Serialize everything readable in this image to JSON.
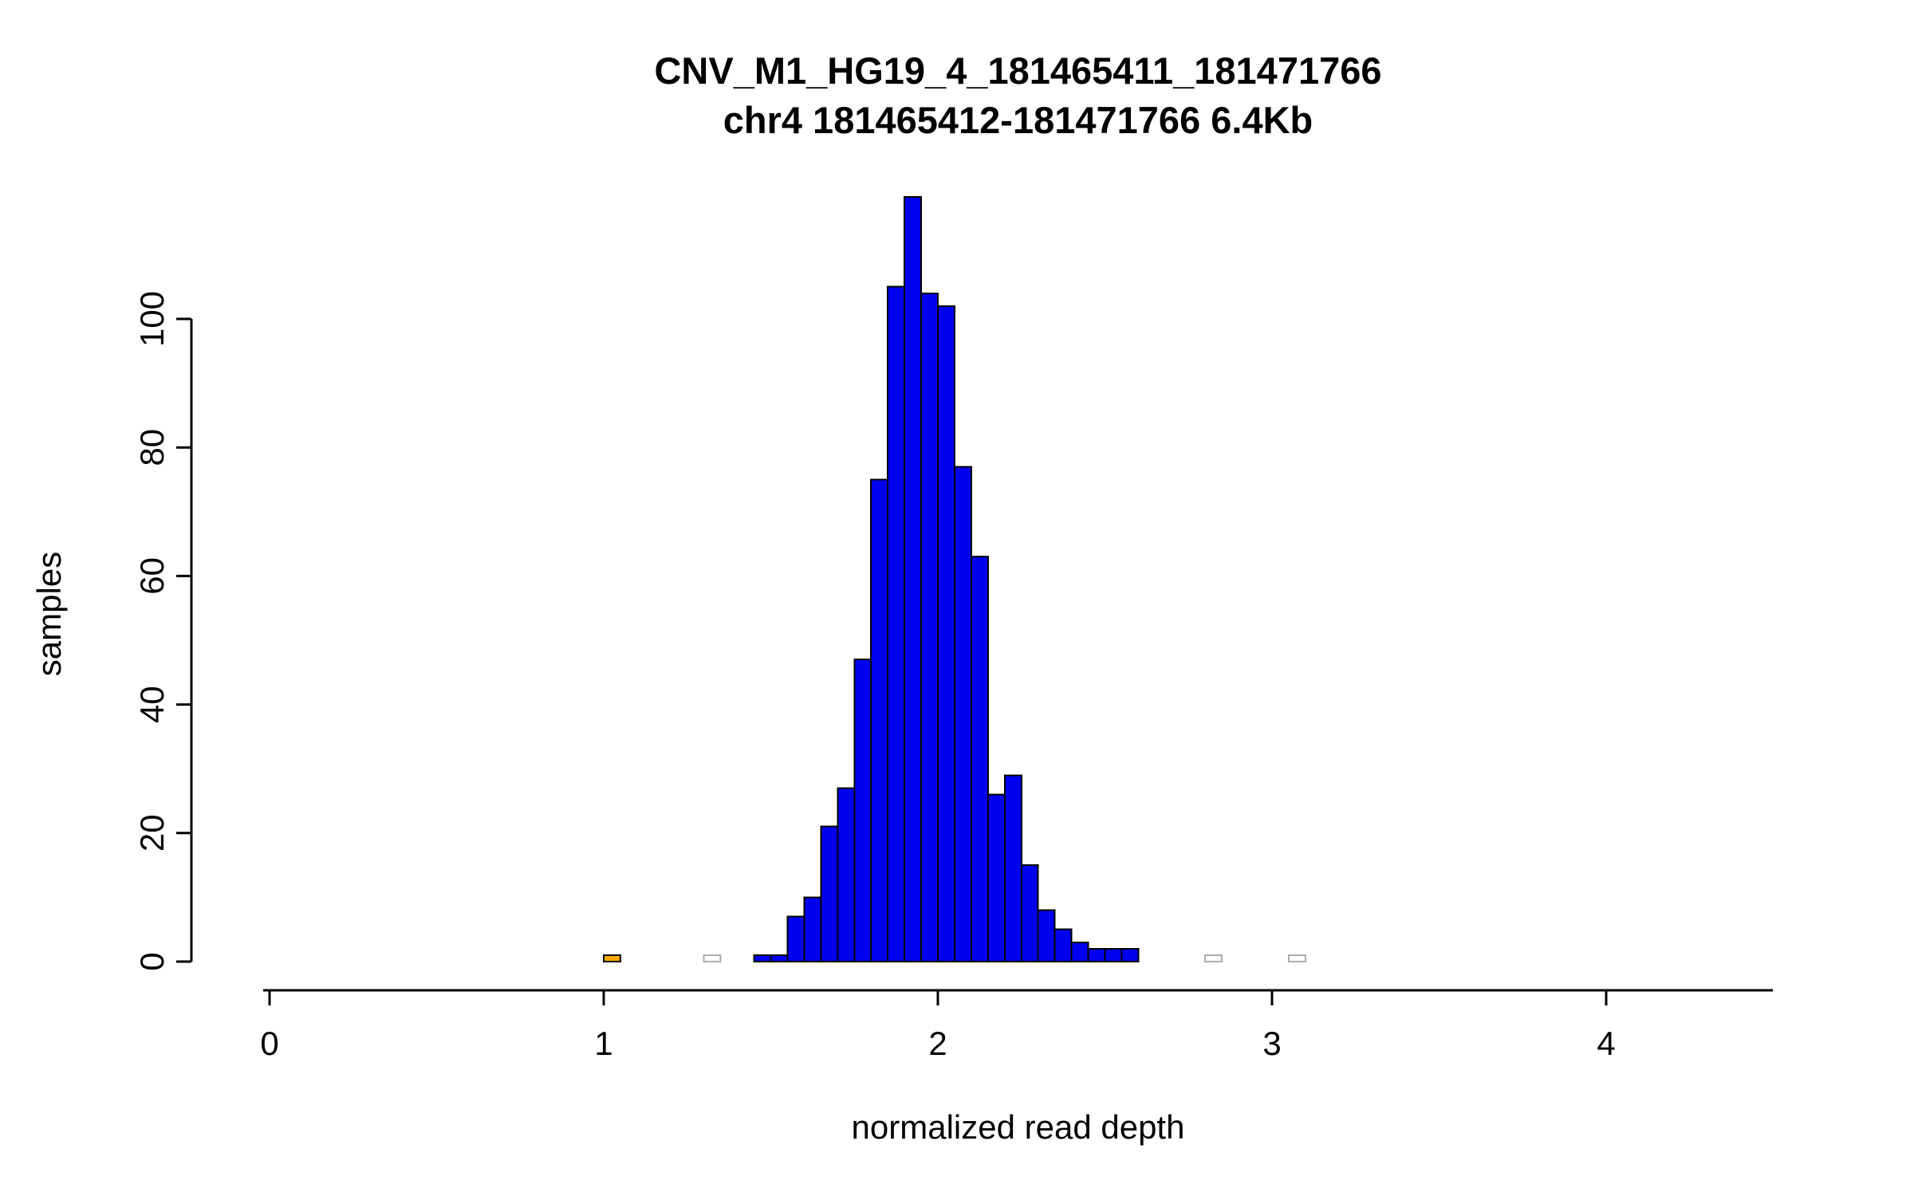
{
  "page": {
    "background": "#FFFFFF"
  },
  "chart_data": {
    "type": "bar",
    "chart_kind": "histogram",
    "title": "CNV_M1_HG19_4_181465411_181471766",
    "subtitle": "chr4 181465412-181471766 6.4Kb",
    "xlabel": "normalized read depth",
    "ylabel": "samples",
    "x_ticks": [
      0,
      1,
      2,
      3,
      4
    ],
    "y_ticks": [
      0,
      20,
      40,
      60,
      80,
      100
    ],
    "xlim": [
      0,
      4.5
    ],
    "ylim": [
      0,
      119
    ],
    "bin_width": 0.05,
    "grid": false,
    "legend": "none",
    "axis_color": "#000000",
    "default_bar_color": "#0000EE",
    "default_bar_border": "#000000",
    "bars": [
      {
        "x": 1.0,
        "count": 1,
        "color": "#FFA500"
      },
      {
        "x": 1.3,
        "count": 1,
        "color": "#FFFFFF",
        "border": "#ADADAD"
      },
      {
        "x": 1.45,
        "count": 1
      },
      {
        "x": 1.5,
        "count": 1
      },
      {
        "x": 1.55,
        "count": 7
      },
      {
        "x": 1.6,
        "count": 10
      },
      {
        "x": 1.65,
        "count": 21
      },
      {
        "x": 1.7,
        "count": 27
      },
      {
        "x": 1.75,
        "count": 47
      },
      {
        "x": 1.8,
        "count": 75
      },
      {
        "x": 1.85,
        "count": 105
      },
      {
        "x": 1.9,
        "count": 119
      },
      {
        "x": 1.95,
        "count": 104
      },
      {
        "x": 2.0,
        "count": 102
      },
      {
        "x": 2.05,
        "count": 77
      },
      {
        "x": 2.1,
        "count": 63
      },
      {
        "x": 2.15,
        "count": 26
      },
      {
        "x": 2.2,
        "count": 29
      },
      {
        "x": 2.25,
        "count": 15
      },
      {
        "x": 2.3,
        "count": 8
      },
      {
        "x": 2.35,
        "count": 5
      },
      {
        "x": 2.4,
        "count": 3
      },
      {
        "x": 2.45,
        "count": 2
      },
      {
        "x": 2.5,
        "count": 2
      },
      {
        "x": 2.55,
        "count": 2
      },
      {
        "x": 2.8,
        "count": 1,
        "color": "#FFFFFF",
        "border": "#ADADAD"
      },
      {
        "x": 3.05,
        "count": 1,
        "color": "#FFFFFF",
        "border": "#ADADAD"
      }
    ]
  }
}
